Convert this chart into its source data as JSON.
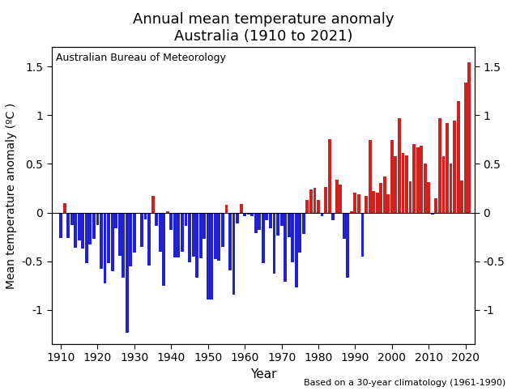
{
  "title_line1": "Annual mean temperature anomaly",
  "title_line2": "Australia (1910 to 2021)",
  "xlabel": "Year",
  "ylabel": "Mean temperature anomaly (ºC )",
  "annotation": "Australian Bureau of Meteorology",
  "footnote": "Based on a 30-year climatology (1961-1990)",
  "years": [
    1910,
    1911,
    1912,
    1913,
    1914,
    1915,
    1916,
    1917,
    1918,
    1919,
    1920,
    1921,
    1922,
    1923,
    1924,
    1925,
    1926,
    1927,
    1928,
    1929,
    1930,
    1931,
    1932,
    1933,
    1934,
    1935,
    1936,
    1937,
    1938,
    1939,
    1940,
    1941,
    1942,
    1943,
    1944,
    1945,
    1946,
    1947,
    1948,
    1949,
    1950,
    1951,
    1952,
    1953,
    1954,
    1955,
    1956,
    1957,
    1958,
    1959,
    1960,
    1961,
    1962,
    1963,
    1964,
    1965,
    1966,
    1967,
    1968,
    1969,
    1970,
    1971,
    1972,
    1973,
    1974,
    1975,
    1976,
    1977,
    1978,
    1979,
    1980,
    1981,
    1982,
    1983,
    1984,
    1985,
    1986,
    1987,
    1988,
    1989,
    1990,
    1991,
    1992,
    1993,
    1994,
    1995,
    1996,
    1997,
    1998,
    1999,
    2000,
    2001,
    2002,
    2003,
    2004,
    2005,
    2006,
    2007,
    2008,
    2009,
    2010,
    2011,
    2012,
    2013,
    2014,
    2015,
    2016,
    2017,
    2018,
    2019,
    2020,
    2021
  ],
  "anomalies": [
    -0.26,
    0.1,
    -0.26,
    -0.13,
    -0.36,
    -0.29,
    -0.37,
    -0.52,
    -0.33,
    -0.27,
    -0.13,
    -0.58,
    -0.73,
    -0.52,
    -0.6,
    -0.16,
    -0.44,
    -0.67,
    -1.23,
    -0.55,
    -0.41,
    -0.01,
    -0.35,
    -0.07,
    -0.54,
    0.17,
    -0.14,
    -0.4,
    -0.75,
    0.01,
    -0.18,
    -0.46,
    -0.46,
    -0.4,
    -0.14,
    -0.51,
    -0.45,
    -0.67,
    -0.47,
    -0.27,
    -0.89,
    -0.89,
    -0.48,
    -0.49,
    -0.35,
    0.08,
    -0.59,
    -0.84,
    -0.11,
    0.09,
    -0.04,
    -0.02,
    -0.04,
    -0.21,
    -0.18,
    -0.52,
    -0.08,
    -0.16,
    -0.63,
    -0.24,
    -0.14,
    -0.71,
    -0.25,
    -0.51,
    -0.77,
    -0.41,
    -0.22,
    0.13,
    0.24,
    0.25,
    0.13,
    -0.04,
    0.26,
    0.75,
    -0.08,
    0.34,
    0.29,
    -0.27,
    -0.67,
    0.01,
    0.2,
    0.19,
    -0.45,
    0.17,
    0.74,
    0.22,
    0.2,
    0.3,
    0.37,
    0.19,
    0.74,
    0.58,
    0.97,
    0.61,
    0.59,
    0.32,
    0.7,
    0.67,
    0.69,
    0.5,
    0.31,
    -0.02,
    0.15,
    0.97,
    0.58,
    0.92,
    0.5,
    0.94,
    1.14,
    0.33,
    1.33,
    1.54
  ],
  "positive_color": "#cc2222",
  "negative_color": "#2222cc",
  "ylim": [
    -1.35,
    1.7
  ],
  "yticks": [
    -1.0,
    -0.5,
    0.0,
    0.5,
    1.0,
    1.5
  ],
  "ytick_labels": [
    "-1",
    "-0.5",
    "0",
    "0.5",
    "1",
    "1.5"
  ],
  "xticks": [
    1910,
    1920,
    1930,
    1940,
    1950,
    1960,
    1970,
    1980,
    1990,
    2000,
    2010,
    2020
  ],
  "xlim": [
    1907.5,
    2022.5
  ],
  "background_color": "#ffffff",
  "title_fontsize": 13,
  "label_fontsize": 10,
  "tick_fontsize": 10,
  "annotation_fontsize": 9,
  "footnote_fontsize": 8,
  "bar_width": 0.85
}
